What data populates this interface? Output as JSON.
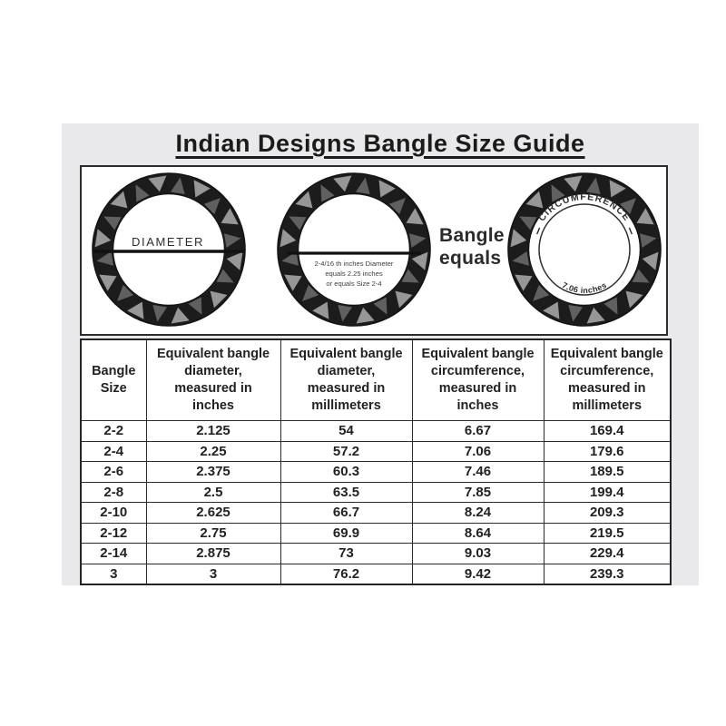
{
  "title": "Indian Designs Bangle Size Guide",
  "diagram": {
    "bangle_diameter": {
      "label": "DIAMETER"
    },
    "bangle_size_example": {
      "line1": "2-4/16 th inches Diameter",
      "line2": "equals 2.25 inches",
      "line3": "or equals Size 2-4"
    },
    "equals_text": {
      "line1": "Bangle",
      "line2": "equals"
    },
    "bangle_circumference": {
      "arc_top": "CIRCUMFERENCE",
      "arc_bottom": "7.06 inches"
    }
  },
  "table": {
    "headers": [
      "Bangle\nSize",
      "Equivalent bangle\ndiameter,\nmeasured in\ninches",
      "Equivalent bangle\ndiameter,\nmeasured in\nmillimeters",
      "Equivalent bangle\ncircumference,\nmeasured in\ninches",
      "Equivalent bangle\ncircumference,\nmeasured in\nmillimeters"
    ],
    "rows": [
      [
        "2-2",
        "2.125",
        "54",
        "6.67",
        "169.4"
      ],
      [
        "2-4",
        "2.25",
        "57.2",
        "7.06",
        "179.6"
      ],
      [
        "2-6",
        "2.375",
        "60.3",
        "7.46",
        "189.5"
      ],
      [
        "2-8",
        "2.5",
        "63.5",
        "7.85",
        "199.4"
      ],
      [
        "2-10",
        "2.625",
        "66.7",
        "8.24",
        "209.3"
      ],
      [
        "2-12",
        "2.75",
        "69.9",
        "8.64",
        "219.5"
      ],
      [
        "2-14",
        "2.875",
        "73",
        "9.03",
        "229.4"
      ],
      [
        "3",
        "3",
        "76.2",
        "9.42",
        "239.3"
      ]
    ]
  },
  "colors": {
    "panel_bg": "#e9e9eb",
    "border": "#2b2b2b",
    "text": "#1f1f1f",
    "ring_dark": "#1c1c1c",
    "ring_gray_light": "#979797",
    "ring_gray_mid": "#606060"
  }
}
